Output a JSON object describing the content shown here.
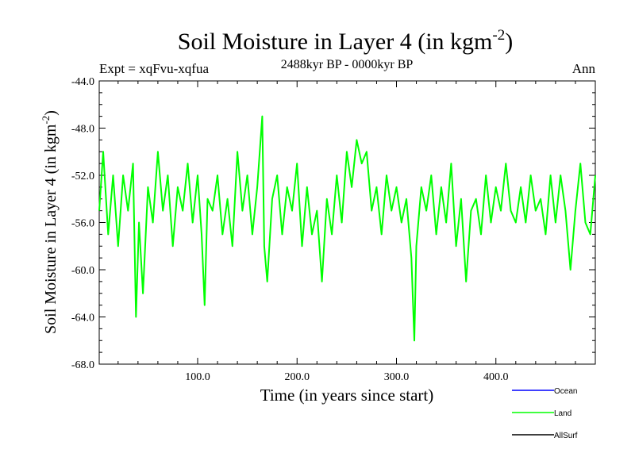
{
  "chart_data": {
    "type": "line",
    "title": "Soil Moisture in Layer 4 (in kgm",
    "title_sup": "-2",
    "title_close": ")",
    "subtitle": "2488kyr BP - 0000kyr BP",
    "left_label": "Expt = xqFvu-xqfua",
    "right_label": "Ann",
    "xlabel": "Time (in years since start)",
    "ylabel": "Soil Moisture in Layer 4 (in kgm",
    "ylabel_sup": "-2",
    "ylabel_close": ")",
    "xlim": [
      1,
      500
    ],
    "ylim": [
      -68,
      -44
    ],
    "xticks": [
      100,
      200,
      300,
      400
    ],
    "xtick_labels": [
      "100.0",
      "200.0",
      "300.0",
      "400.0"
    ],
    "yticks": [
      -44,
      -48,
      -52,
      -56,
      -60,
      -64,
      -68
    ],
    "ytick_labels": [
      "-44.0",
      "-48.0",
      "-52.0",
      "-56.0",
      "-60.0",
      "-64.0",
      "-68.0"
    ],
    "legend": [
      {
        "name": "Ocean",
        "color": "#0000ff"
      },
      {
        "name": "Land",
        "color": "#00ff00"
      },
      {
        "name": "AllSurf",
        "color": "#000000"
      }
    ],
    "series": [
      {
        "name": "Land",
        "color": "#00ff00",
        "x": [
          1,
          5,
          10,
          15,
          20,
          25,
          30,
          35,
          38,
          41,
          45,
          50,
          55,
          60,
          65,
          70,
          75,
          80,
          85,
          90,
          95,
          100,
          104,
          107,
          110,
          115,
          120,
          125,
          130,
          135,
          140,
          145,
          150,
          155,
          160,
          165,
          167,
          170,
          175,
          180,
          185,
          190,
          195,
          200,
          205,
          210,
          215,
          220,
          225,
          230,
          235,
          240,
          245,
          250,
          255,
          260,
          265,
          270,
          275,
          280,
          285,
          290,
          295,
          300,
          305,
          310,
          315,
          318,
          320,
          325,
          330,
          335,
          340,
          345,
          350,
          355,
          360,
          365,
          370,
          375,
          380,
          385,
          390,
          395,
          400,
          405,
          410,
          415,
          420,
          425,
          430,
          435,
          440,
          445,
          450,
          455,
          460,
          465,
          470,
          475,
          480,
          485,
          490,
          495,
          500
        ],
        "values": [
          -55,
          -50,
          -57,
          -52,
          -58,
          -52,
          -55,
          -51,
          -64,
          -56,
          -62,
          -53,
          -56,
          -50,
          -55,
          -52,
          -58,
          -53,
          -55,
          -51,
          -56,
          -52,
          -57,
          -63,
          -54,
          -55,
          -52,
          -57,
          -54,
          -58,
          -50,
          -55,
          -52,
          -57,
          -53,
          -47,
          -58,
          -61,
          -54,
          -52,
          -57,
          -53,
          -55,
          -51,
          -58,
          -53,
          -57,
          -55,
          -61,
          -54,
          -57,
          -52,
          -56,
          -50,
          -53,
          -49,
          -51,
          -50,
          -55,
          -53,
          -57,
          -52,
          -55,
          -53,
          -56,
          -54,
          -59,
          -66,
          -58,
          -53,
          -55,
          -52,
          -57,
          -53,
          -56,
          -51,
          -58,
          -54,
          -61,
          -55,
          -54,
          -57,
          -52,
          -56,
          -53,
          -55,
          -51,
          -55,
          -56,
          -53,
          -56,
          -52,
          -55,
          -54,
          -57,
          -52,
          -56,
          -52,
          -55,
          -60,
          -55,
          -51,
          -56,
          -57,
          -52
        ]
      }
    ]
  }
}
